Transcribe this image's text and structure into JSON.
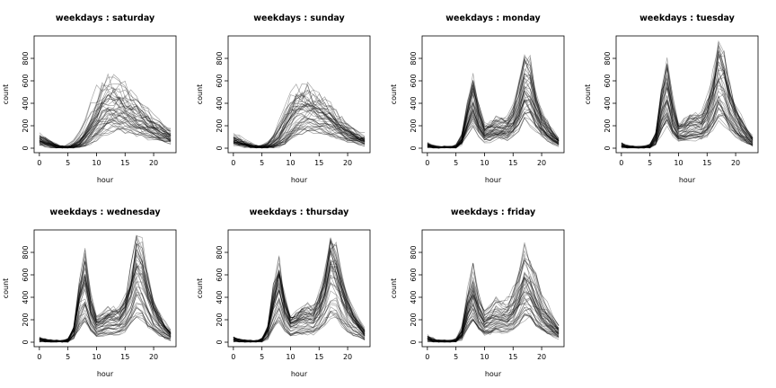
{
  "chart_data": {
    "type": "line",
    "description_note": "",
    "x": [
      0,
      1,
      2,
      3,
      4,
      5,
      6,
      7,
      8,
      9,
      10,
      11,
      12,
      13,
      14,
      15,
      16,
      17,
      18,
      19,
      20,
      21,
      22,
      23
    ],
    "xlim": [
      0,
      23
    ],
    "ylim": [
      0,
      1000
    ],
    "xticks": [
      0,
      5,
      10,
      15,
      20
    ],
    "yticks": [
      0,
      200,
      400,
      600,
      800
    ],
    "xlabel": "hour",
    "ylabel": "count",
    "grid": false,
    "line_color": "#000000",
    "line_opacity": 0.35,
    "panels": [
      {
        "title": "weekdays : saturday",
        "pattern": "weekend",
        "typical_curve": [
          95,
          70,
          45,
          20,
          8,
          8,
          20,
          50,
          110,
          190,
          290,
          380,
          430,
          440,
          420,
          390,
          360,
          320,
          290,
          250,
          200,
          170,
          150,
          110
        ]
      },
      {
        "title": "weekdays : sunday",
        "pattern": "weekend",
        "typical_curve": [
          90,
          65,
          45,
          25,
          10,
          8,
          15,
          40,
          90,
          170,
          260,
          350,
          380,
          400,
          380,
          350,
          320,
          280,
          240,
          200,
          160,
          130,
          100,
          70
        ]
      },
      {
        "title": "weekdays : monday",
        "pattern": "weekday",
        "typical_curve": [
          30,
          15,
          8,
          5,
          5,
          15,
          80,
          300,
          480,
          280,
          150,
          170,
          200,
          200,
          200,
          260,
          400,
          620,
          560,
          380,
          250,
          170,
          110,
          60
        ]
      },
      {
        "title": "weekdays : tuesday",
        "pattern": "weekday",
        "typical_curve": [
          30,
          15,
          8,
          5,
          5,
          20,
          100,
          380,
          560,
          300,
          160,
          180,
          220,
          220,
          220,
          300,
          460,
          700,
          620,
          420,
          280,
          190,
          120,
          70
        ]
      },
      {
        "title": "weekdays : wednesday",
        "pattern": "weekday",
        "typical_curve": [
          30,
          15,
          8,
          5,
          5,
          20,
          100,
          380,
          560,
          300,
          160,
          180,
          220,
          220,
          220,
          300,
          460,
          700,
          620,
          420,
          280,
          190,
          120,
          70
        ]
      },
      {
        "title": "weekdays : thursday",
        "pattern": "weekday",
        "typical_curve": [
          30,
          15,
          8,
          5,
          5,
          20,
          100,
          370,
          540,
          300,
          170,
          190,
          230,
          230,
          230,
          310,
          470,
          700,
          630,
          440,
          300,
          210,
          140,
          80
        ]
      },
      {
        "title": "weekdays : friday",
        "pattern": "weekday",
        "typical_curve": [
          40,
          20,
          10,
          6,
          6,
          20,
          90,
          340,
          500,
          300,
          200,
          230,
          270,
          270,
          270,
          330,
          460,
          620,
          560,
          420,
          300,
          230,
          170,
          110
        ]
      }
    ]
  }
}
